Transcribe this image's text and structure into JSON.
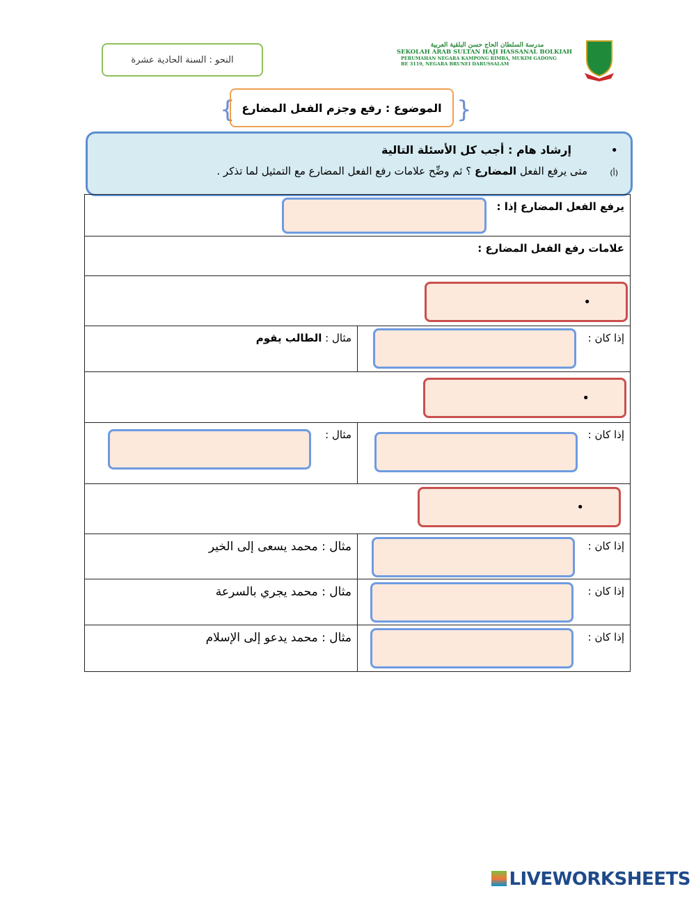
{
  "subject": "النحو : السنة الحادية عشرة",
  "school": {
    "arabic_name": "مدرسة السلطان الحاج حسن البلقية العربية",
    "name": "SEKOLAH ARAB SULTAN HAJI HASSANAL BOLKIAH",
    "address1": "PERUMAHAN NEGARA KAMPONG RIMBA, MUKIM GADONG",
    "address2": "BE 3119, NEGARA BRUNEI DARUSSALAM"
  },
  "topic": "الموضوع : رفع وجزم الفعل المضارع",
  "instructions": {
    "heading": "إرشاد هام : أجب كل الأسئلة التالية",
    "marker": "(أ)",
    "question_part1": "متى يرفع الفعل",
    "question_bold": "المضارع",
    "question_part2": "؟ ثم وضِّح علامات رفع الفعل المضارع مع التمثيل لما تذكر ."
  },
  "table": {
    "raise_when": "يرفع الفعل المضارع إذا :",
    "marks_title": "علامات رفع الفعل المضارع :",
    "if_label": "إذا كان :",
    "example_label": "مثال :",
    "examples": [
      "الطالب يقوم",
      "",
      "محمد يسعى إلى الخير",
      "محمد يجري بالسرعة",
      "محمد يدعو إلى الإسلام"
    ]
  },
  "bullet": "•",
  "footer": {
    "brand": "LIVEWORKSHEETS"
  }
}
